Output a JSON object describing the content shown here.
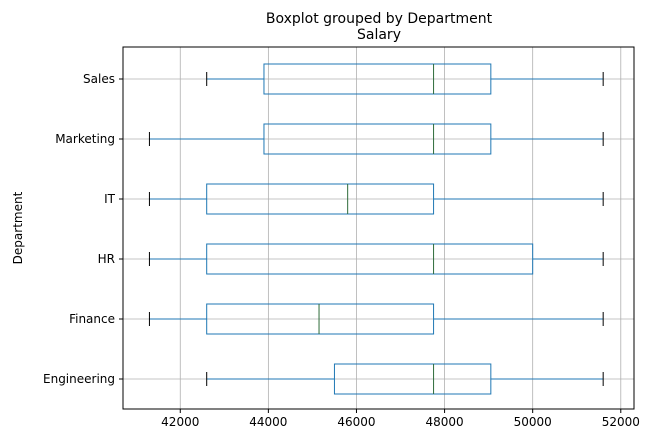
{
  "chart_data": {
    "type": "boxplot",
    "suptitle": "Boxplot grouped by Department",
    "title": "Salary",
    "ylabel": "Department",
    "xlabel": "",
    "orientation": "horizontal",
    "xlim": [
      40700,
      52300
    ],
    "xticks": [
      42000,
      44000,
      46000,
      48000,
      50000,
      52000
    ],
    "xtick_labels": [
      "42000",
      "44000",
      "46000",
      "48000",
      "50000",
      "52000"
    ],
    "grid": true,
    "box_color": "#1f77b4",
    "median_color": "#2d6b3a",
    "categories": [
      "Sales",
      "Marketing",
      "IT",
      "HR",
      "Finance",
      "Engineering"
    ],
    "boxes": [
      {
        "category": "Sales",
        "whislo": 42600,
        "q1": 43900,
        "med": 47750,
        "q3": 49050,
        "whishi": 51600
      },
      {
        "category": "Marketing",
        "whislo": 41300,
        "q1": 43900,
        "med": 47750,
        "q3": 49050,
        "whishi": 51600
      },
      {
        "category": "IT",
        "whislo": 41300,
        "q1": 42600,
        "med": 45800,
        "q3": 47750,
        "whishi": 51600
      },
      {
        "category": "HR",
        "whislo": 41300,
        "q1": 42600,
        "med": 47750,
        "q3": 50000,
        "whishi": 51600
      },
      {
        "category": "Finance",
        "whislo": 41300,
        "q1": 42600,
        "med": 45150,
        "q3": 47750,
        "whishi": 51600
      },
      {
        "category": "Engineering",
        "whislo": 42600,
        "q1": 45500,
        "med": 47750,
        "q3": 49050,
        "whishi": 51600
      }
    ]
  }
}
